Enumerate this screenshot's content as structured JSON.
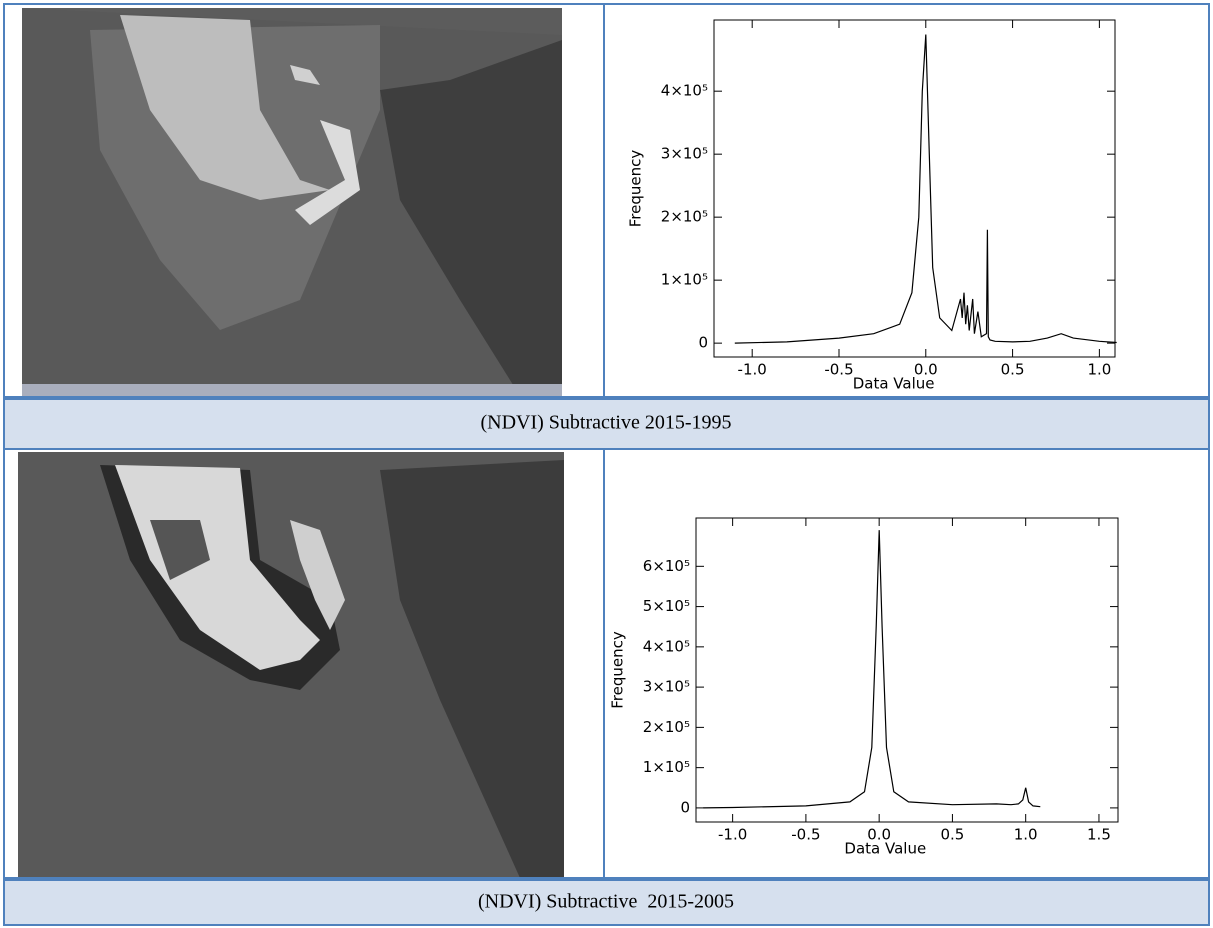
{
  "chart_data": [
    {
      "type": "line",
      "x_label": "Data Value",
      "y_label": "Frequency",
      "x": [
        -1.1,
        -0.8,
        -0.5,
        -0.3,
        -0.15,
        -0.08,
        -0.04,
        -0.02,
        0,
        0.02,
        0.04,
        0.08,
        0.15,
        0.18,
        0.2,
        0.21,
        0.22,
        0.23,
        0.24,
        0.25,
        0.27,
        0.28,
        0.3,
        0.32,
        0.35,
        0.355,
        0.36,
        0.37,
        0.4,
        0.5,
        0.6,
        0.7,
        0.78,
        0.85,
        1.0,
        1.1
      ],
      "values": [
        0,
        2000,
        8000,
        15000,
        30000,
        80000,
        200000,
        400000,
        490000,
        300000,
        120000,
        40000,
        20000,
        50000,
        70000,
        40000,
        80000,
        30000,
        60000,
        20000,
        70000,
        15000,
        50000,
        10000,
        15000,
        180000,
        10000,
        5000,
        3000,
        2000,
        3000,
        8000,
        15000,
        8000,
        3000,
        1000
      ],
      "color": "#000000",
      "xlim": [
        -1.22,
        1.09
      ],
      "ylim": [
        -22000,
        513000
      ],
      "xticks": [
        {
          "value": -1,
          "label": "-1.0"
        },
        {
          "value": -0.5,
          "label": "-0.5"
        },
        {
          "value": 0,
          "label": "0.0"
        },
        {
          "value": 0.5,
          "label": "0.5"
        },
        {
          "value": 1,
          "label": "1.0"
        }
      ],
      "yticks": [
        0,
        {
          "value": 100000,
          "label": "1×10⁵"
        },
        {
          "value": 200000,
          "label": "2×10⁵"
        },
        {
          "value": 300000,
          "label": "3×10⁵"
        },
        {
          "value": 400000,
          "label": "4×10⁵"
        }
      ]
    },
    {
      "type": "line",
      "x_label": "Data Value",
      "y_label": "Frequency",
      "x": [
        -1.2,
        -1.0,
        -0.5,
        -0.2,
        -0.1,
        -0.05,
        -0.02,
        0,
        0.02,
        0.05,
        0.1,
        0.2,
        0.5,
        0.8,
        0.9,
        0.95,
        0.98,
        1.0,
        1.02,
        1.05,
        1.1
      ],
      "values": [
        0,
        1000,
        5000,
        15000,
        40000,
        150000,
        450000,
        690000,
        450000,
        150000,
        40000,
        15000,
        8000,
        10000,
        8000,
        10000,
        20000,
        50000,
        15000,
        5000,
        3000
      ],
      "color": "#000000",
      "xlim": [
        -1.25,
        1.63
      ],
      "ylim": [
        -35000,
        720000
      ],
      "xticks": [
        {
          "value": -1,
          "label": "-1.0"
        },
        {
          "value": -0.5,
          "label": "-0.5"
        },
        {
          "value": 0,
          "label": "0.0"
        },
        {
          "value": 0.5,
          "label": "0.5"
        },
        {
          "value": 1,
          "label": "1.0"
        },
        {
          "value": 1.5,
          "label": "1.5"
        }
      ],
      "yticks": [
        0,
        {
          "value": 100000,
          "label": "1×10⁵"
        },
        {
          "value": 200000,
          "label": "2×10⁵"
        },
        {
          "value": 300000,
          "label": "3×10⁵"
        },
        {
          "value": 400000,
          "label": "4×10⁵"
        },
        {
          "value": 500000,
          "label": "5×10⁵"
        },
        {
          "value": 600000,
          "label": "6×10⁵"
        }
      ]
    }
  ],
  "captions": [
    "(NDVI) Subtractive 2015-1995",
    "(NDVI) Subtractive  2015-2005"
  ]
}
